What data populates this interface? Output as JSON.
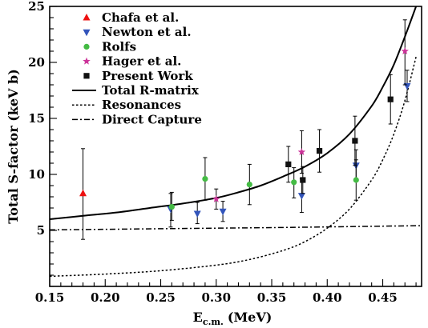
{
  "chart_data": {
    "type": "scatter",
    "xlabel": "E",
    "xlabel_sub": "c.m.",
    "xlabel_unit": "(MeV)",
    "ylabel": "Total S-factor (keV b)",
    "xlim": [
      0.15,
      0.485
    ],
    "ylim": [
      0,
      25
    ],
    "xticks": [
      "0.15",
      "0.20",
      "0.25",
      "0.30",
      "0.35",
      "0.40",
      "0.45"
    ],
    "xtick_values": [
      0.15,
      0.2,
      0.25,
      0.3,
      0.35,
      0.4,
      0.45
    ],
    "yticks": [
      "5",
      "10",
      "15",
      "20",
      "25"
    ],
    "ytick_values": [
      5,
      10,
      15,
      20,
      25
    ],
    "legend_position": "top-left",
    "series": [
      {
        "name": "Chafa et al.",
        "marker": "triangle-up",
        "color": "#ee1111",
        "points": [
          {
            "x": 0.18,
            "y": 8.3,
            "lo": 4.2,
            "hi": 12.3
          }
        ]
      },
      {
        "name": "Newton et al.",
        "marker": "triangle-down",
        "color": "#3355bb",
        "points": [
          {
            "x": 0.259,
            "y": 6.9,
            "lo": 5.3,
            "hi": 8.3
          },
          {
            "x": 0.283,
            "y": 6.5,
            "lo": 5.6,
            "hi": 7.5
          },
          {
            "x": 0.306,
            "y": 6.7,
            "lo": 5.8,
            "hi": 7.6
          },
          {
            "x": 0.377,
            "y": 8.1,
            "lo": 6.6,
            "hi": 9.6
          },
          {
            "x": 0.426,
            "y": 10.8,
            "lo": 9.4,
            "hi": 12.2
          },
          {
            "x": 0.472,
            "y": 17.9,
            "lo": 16.5,
            "hi": 19.3
          }
        ]
      },
      {
        "name": "Rolfs",
        "marker": "circle",
        "color": "#44bb44",
        "points": [
          {
            "x": 0.26,
            "y": 7.1,
            "lo": 5.9,
            "hi": 8.4
          },
          {
            "x": 0.29,
            "y": 9.6,
            "lo": 7.7,
            "hi": 11.5
          },
          {
            "x": 0.33,
            "y": 9.1,
            "lo": 7.3,
            "hi": 10.9
          },
          {
            "x": 0.37,
            "y": 9.3,
            "lo": 7.9,
            "hi": 10.6
          },
          {
            "x": 0.426,
            "y": 9.5,
            "lo": 7.7,
            "hi": 11.3
          }
        ]
      },
      {
        "name": "Hager et al.",
        "marker": "star",
        "color": "#cc3399",
        "points": [
          {
            "x": 0.3,
            "y": 7.8,
            "lo": 6.9,
            "hi": 8.7
          },
          {
            "x": 0.377,
            "y": 12.0,
            "lo": 10.1,
            "hi": 13.9
          },
          {
            "x": 0.47,
            "y": 21.0,
            "lo": 18.0,
            "hi": 23.8
          }
        ]
      },
      {
        "name": "Present Work",
        "marker": "square",
        "color": "#111111",
        "points": [
          {
            "x": 0.365,
            "y": 10.9,
            "lo": 9.3,
            "hi": 12.5
          },
          {
            "x": 0.378,
            "y": 9.5,
            "lo": 8.3,
            "hi": 10.7
          },
          {
            "x": 0.393,
            "y": 12.1,
            "lo": 10.2,
            "hi": 14.0
          },
          {
            "x": 0.425,
            "y": 13.0,
            "lo": 10.8,
            "hi": 15.2
          },
          {
            "x": 0.457,
            "y": 16.7,
            "lo": 14.5,
            "hi": 18.9
          }
        ]
      }
    ],
    "curves": [
      {
        "name": "Total R-matrix",
        "style": "solid",
        "x": [
          0.15,
          0.18,
          0.21,
          0.24,
          0.27,
          0.3,
          0.32,
          0.34,
          0.36,
          0.38,
          0.4,
          0.42,
          0.44,
          0.45,
          0.46,
          0.47,
          0.48
        ],
        "y": [
          6.0,
          6.3,
          6.6,
          7.0,
          7.4,
          7.9,
          8.4,
          9.0,
          9.8,
          10.7,
          11.9,
          13.6,
          16.1,
          17.8,
          19.8,
          22.3,
          25.0
        ]
      },
      {
        "name": "Resonances",
        "style": "dotted",
        "x": [
          0.15,
          0.2,
          0.25,
          0.3,
          0.33,
          0.36,
          0.38,
          0.4,
          0.42,
          0.44,
          0.45,
          0.46,
          0.47,
          0.48
        ],
        "y": [
          0.9,
          1.1,
          1.4,
          1.9,
          2.4,
          3.2,
          4.0,
          5.2,
          6.9,
          9.5,
          11.3,
          13.6,
          16.6,
          20.5
        ]
      },
      {
        "name": "Direct Capture",
        "style": "dashdot",
        "x": [
          0.15,
          0.25,
          0.35,
          0.45,
          0.485
        ],
        "y": [
          5.05,
          5.15,
          5.25,
          5.38,
          5.42
        ]
      }
    ]
  }
}
